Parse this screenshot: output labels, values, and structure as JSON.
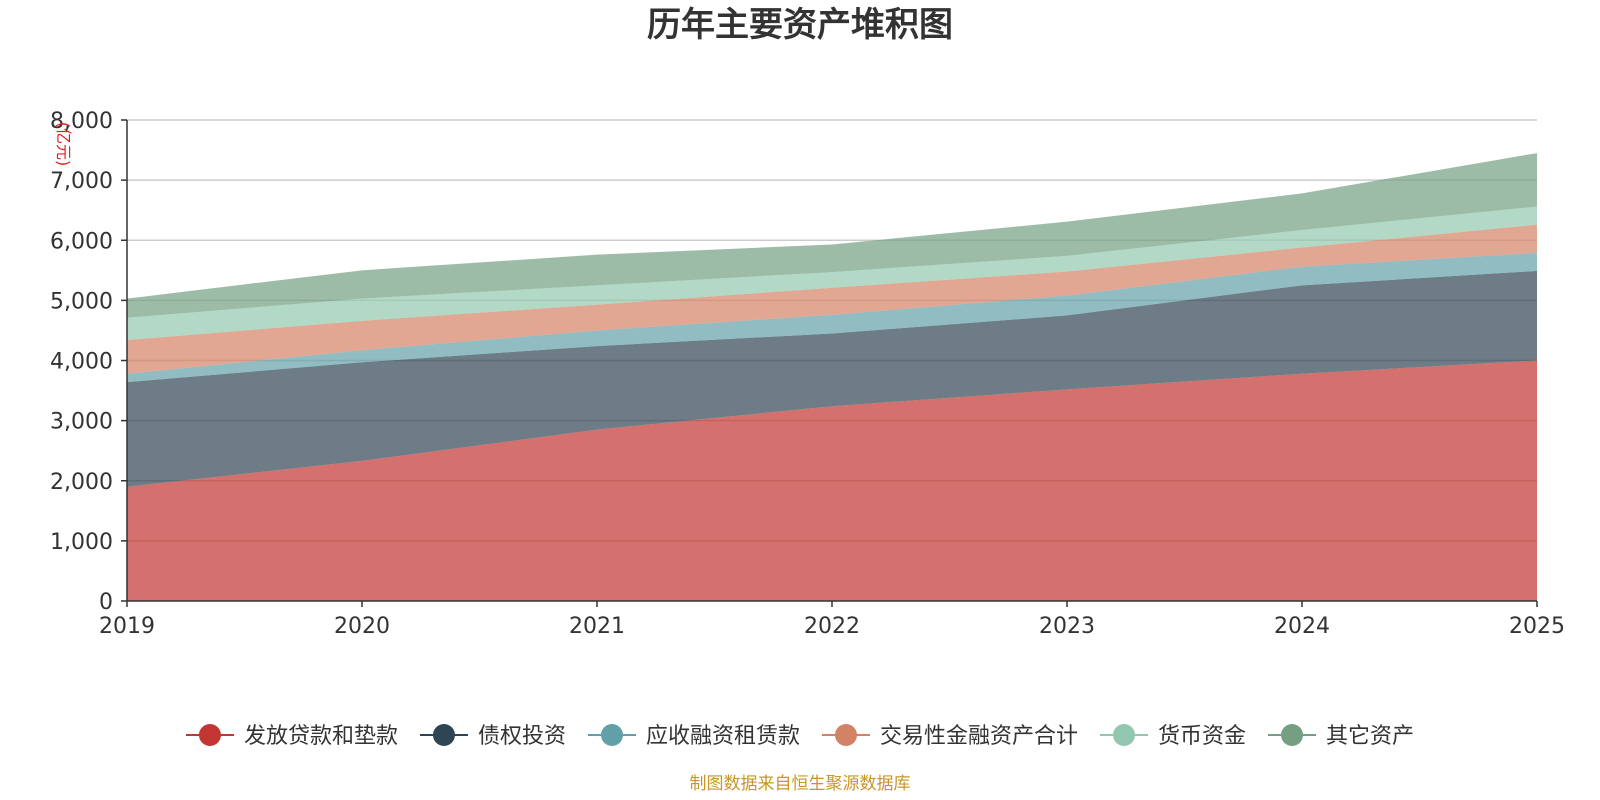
{
  "chart_data": {
    "type": "area",
    "title": "历年主要资产堆积图",
    "ylabel": "(亿元)",
    "xlabel": "",
    "x": [
      "2019",
      "2020",
      "2021",
      "2022",
      "2023",
      "2024",
      "2025"
    ],
    "ylim": [
      0,
      8000
    ],
    "yticks": [
      0,
      1000,
      2000,
      3000,
      4000,
      5000,
      6000,
      7000,
      8000
    ],
    "ytick_labels": [
      "0",
      "1,000",
      "2,000",
      "3,000",
      "4,000",
      "5,000",
      "6,000",
      "7,000",
      "8,000"
    ],
    "stacked": true,
    "grid": true,
    "legend_position": "bottom",
    "series": [
      {
        "name": "发放贷款和垫款",
        "color": "#c23531",
        "values": [
          1900,
          2330,
          2850,
          3240,
          3520,
          3780,
          4000
        ]
      },
      {
        "name": "债权投资",
        "color": "#2f4554",
        "values": [
          1740,
          1640,
          1390,
          1210,
          1230,
          1470,
          1490
        ]
      },
      {
        "name": "应收融资租赁款",
        "color": "#61a0a8",
        "values": [
          140,
          200,
          260,
          310,
          330,
          310,
          300
        ]
      },
      {
        "name": "交易性金融资产合计",
        "color": "#d48265",
        "values": [
          560,
          490,
          430,
          450,
          400,
          320,
          470
        ]
      },
      {
        "name": "货币资金",
        "color": "#91c7ae",
        "values": [
          370,
          370,
          320,
          260,
          260,
          290,
          300
        ]
      },
      {
        "name": "其它资产",
        "color": "#749f83",
        "values": [
          320,
          470,
          510,
          460,
          570,
          610,
          890
        ]
      }
    ]
  },
  "source_note": "制图数据来自恒生聚源数据库"
}
